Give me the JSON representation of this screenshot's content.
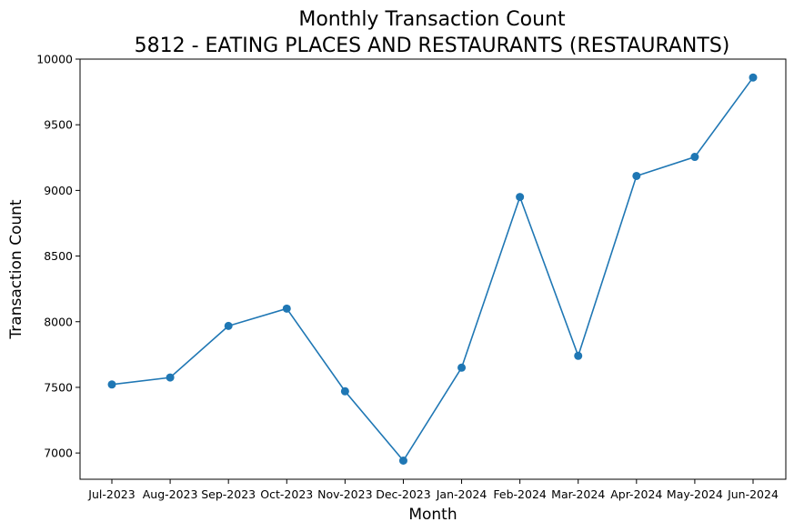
{
  "chart_data": {
    "type": "line",
    "title": "Monthly Transaction Count",
    "subtitle": "5812 - EATING PLACES AND RESTAURANTS (RESTAURANTS)",
    "xlabel": "Month",
    "ylabel": "Transaction Count",
    "categories": [
      "Jul-2023",
      "Aug-2023",
      "Sep-2023",
      "Oct-2023",
      "Nov-2023",
      "Dec-2023",
      "Jan-2024",
      "Feb-2024",
      "Mar-2024",
      "Apr-2024",
      "May-2024",
      "Jun-2024"
    ],
    "values": [
      7522,
      7575,
      7968,
      8100,
      7470,
      6942,
      7650,
      8950,
      7740,
      9110,
      9255,
      9860
    ],
    "ylim": [
      6800,
      10000
    ],
    "yticks": [
      7000,
      7500,
      8000,
      8500,
      9000,
      9500,
      10000
    ],
    "grid": false,
    "marker": "circle",
    "color": "#1f77b4"
  }
}
